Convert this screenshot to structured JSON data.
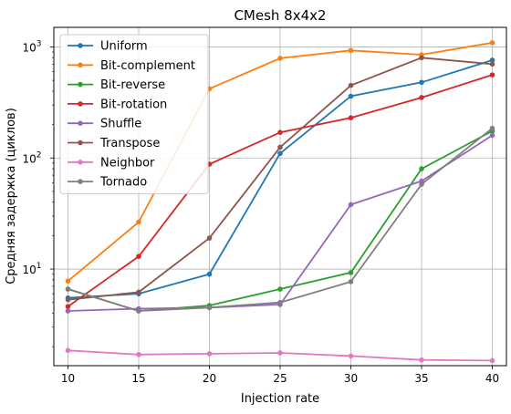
{
  "chart_data": {
    "type": "line",
    "title": "CMesh 8x4x2",
    "xlabel": "Injection rate",
    "ylabel": "Средняя задержка (циклов)",
    "yscale": "log",
    "xlim": [
      9,
      41
    ],
    "ylim": [
      1.35,
      1500
    ],
    "grid": true,
    "legend_position": "top-left",
    "x": [
      10,
      15,
      20,
      25,
      30,
      35,
      40
    ],
    "x_ticks": [
      "10",
      "15",
      "20",
      "25",
      "30",
      "35",
      "40"
    ],
    "y_ticks": [
      {
        "value": 10,
        "base": "10",
        "exp": "1"
      },
      {
        "value": 100,
        "base": "10",
        "exp": "2"
      },
      {
        "value": 1000,
        "base": "10",
        "exp": "3"
      }
    ],
    "series": [
      {
        "name": "Uniform",
        "color": "#1f77b4",
        "values": [
          5.5,
          6.0,
          9.0,
          110,
          360,
          480,
          760
        ]
      },
      {
        "name": "Bit-complement",
        "color": "#ff7f0e",
        "values": [
          7.8,
          26.5,
          420,
          790,
          930,
          850,
          1090
        ]
      },
      {
        "name": "Bit-reverse",
        "color": "#2ca02c",
        "values": [
          6.6,
          4.2,
          4.7,
          6.6,
          9.3,
          80,
          175
        ]
      },
      {
        "name": "Bit-rotation",
        "color": "#d62728",
        "values": [
          4.6,
          13.0,
          88,
          170,
          230,
          350,
          560
        ]
      },
      {
        "name": "Shuffle",
        "color": "#9467bd",
        "values": [
          4.2,
          4.4,
          4.5,
          4.8,
          38,
          62,
          160
        ]
      },
      {
        "name": "Transpose",
        "color": "#8c564b",
        "values": [
          5.3,
          6.2,
          19,
          125,
          450,
          800,
          700
        ]
      },
      {
        "name": "Neighbor",
        "color": "#e377c2",
        "values": [
          1.85,
          1.7,
          1.73,
          1.76,
          1.65,
          1.52,
          1.5
        ]
      },
      {
        "name": "Tornado",
        "color": "#7f7f7f",
        "values": [
          6.6,
          4.2,
          4.5,
          5.0,
          7.7,
          58,
          185
        ]
      }
    ]
  }
}
